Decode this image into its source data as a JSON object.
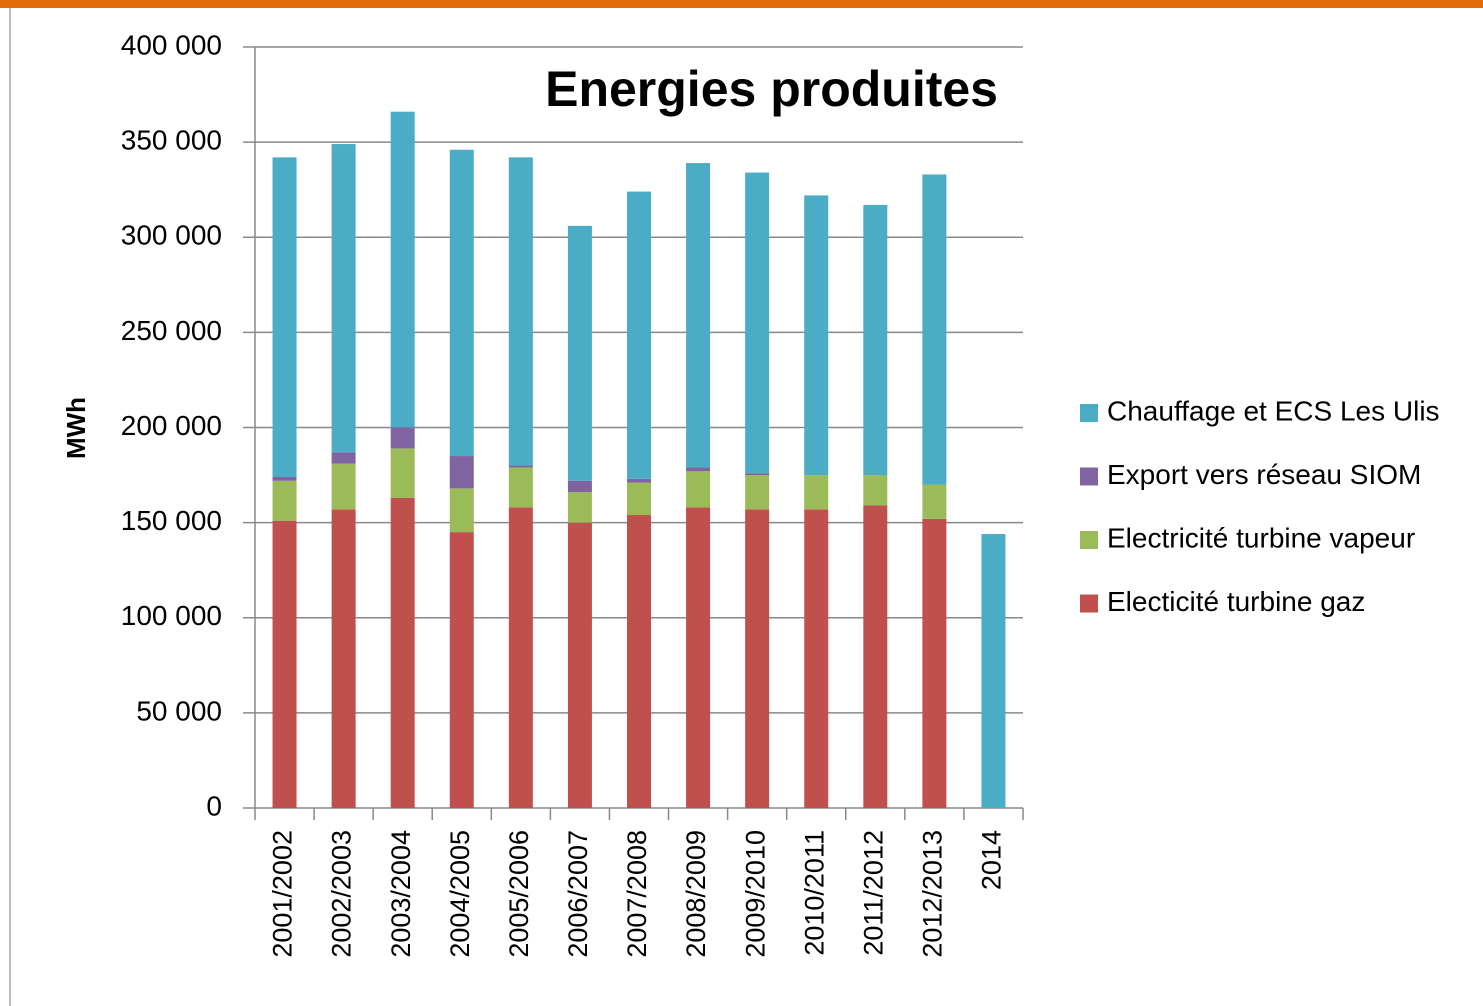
{
  "chart_data": {
    "type": "stacked_bar",
    "title": "Energies produites",
    "y_label": "MWh",
    "categories": [
      "2001/2002",
      "2002/2003",
      "2003/2004",
      "2004/2005",
      "2005/2006",
      "2006/2007",
      "2007/2008",
      "2008/2009",
      "2009/2010",
      "2010/2011",
      "2011/2012",
      "2012/2013",
      "2014"
    ],
    "series": [
      {
        "name": "Electicité turbine gaz",
        "color": "#c0504d",
        "values": [
          151000,
          157000,
          163000,
          145000,
          158000,
          150000,
          154000,
          158000,
          157000,
          157000,
          159000,
          152000,
          null
        ]
      },
      {
        "name": "Electricité turbine vapeur",
        "color": "#9bbb59",
        "values": [
          21000,
          24000,
          26000,
          23000,
          21000,
          16000,
          17000,
          19000,
          18000,
          18000,
          16000,
          18000,
          null
        ]
      },
      {
        "name": "Export vers réseau SIOM",
        "color": "#8064a2",
        "values": [
          2000,
          6000,
          11000,
          17000,
          1000,
          6000,
          2000,
          2000,
          1000,
          0,
          0,
          0,
          null
        ]
      },
      {
        "name": "Chauffage et ECS Les Ulis",
        "color": "#4bacc6",
        "values": [
          168000,
          162000,
          166000,
          161000,
          162000,
          134000,
          151000,
          160000,
          158000,
          147000,
          142000,
          163000,
          144000
        ]
      }
    ],
    "ylim": [
      0,
      400000
    ],
    "yticks": [
      0,
      {
        "value": 50000,
        "label": "50 000"
      },
      {
        "value": 100000,
        "label": "100 000"
      },
      {
        "value": 150000,
        "label": "150 000"
      },
      {
        "value": 200000,
        "label": "200 000"
      },
      {
        "value": 250000,
        "label": "250 000"
      },
      {
        "value": 300000,
        "label": "300 000"
      },
      {
        "value": 350000,
        "label": "350 000"
      },
      {
        "value": 400000,
        "label": "400 000"
      }
    ],
    "grid": true,
    "legend": "right"
  }
}
